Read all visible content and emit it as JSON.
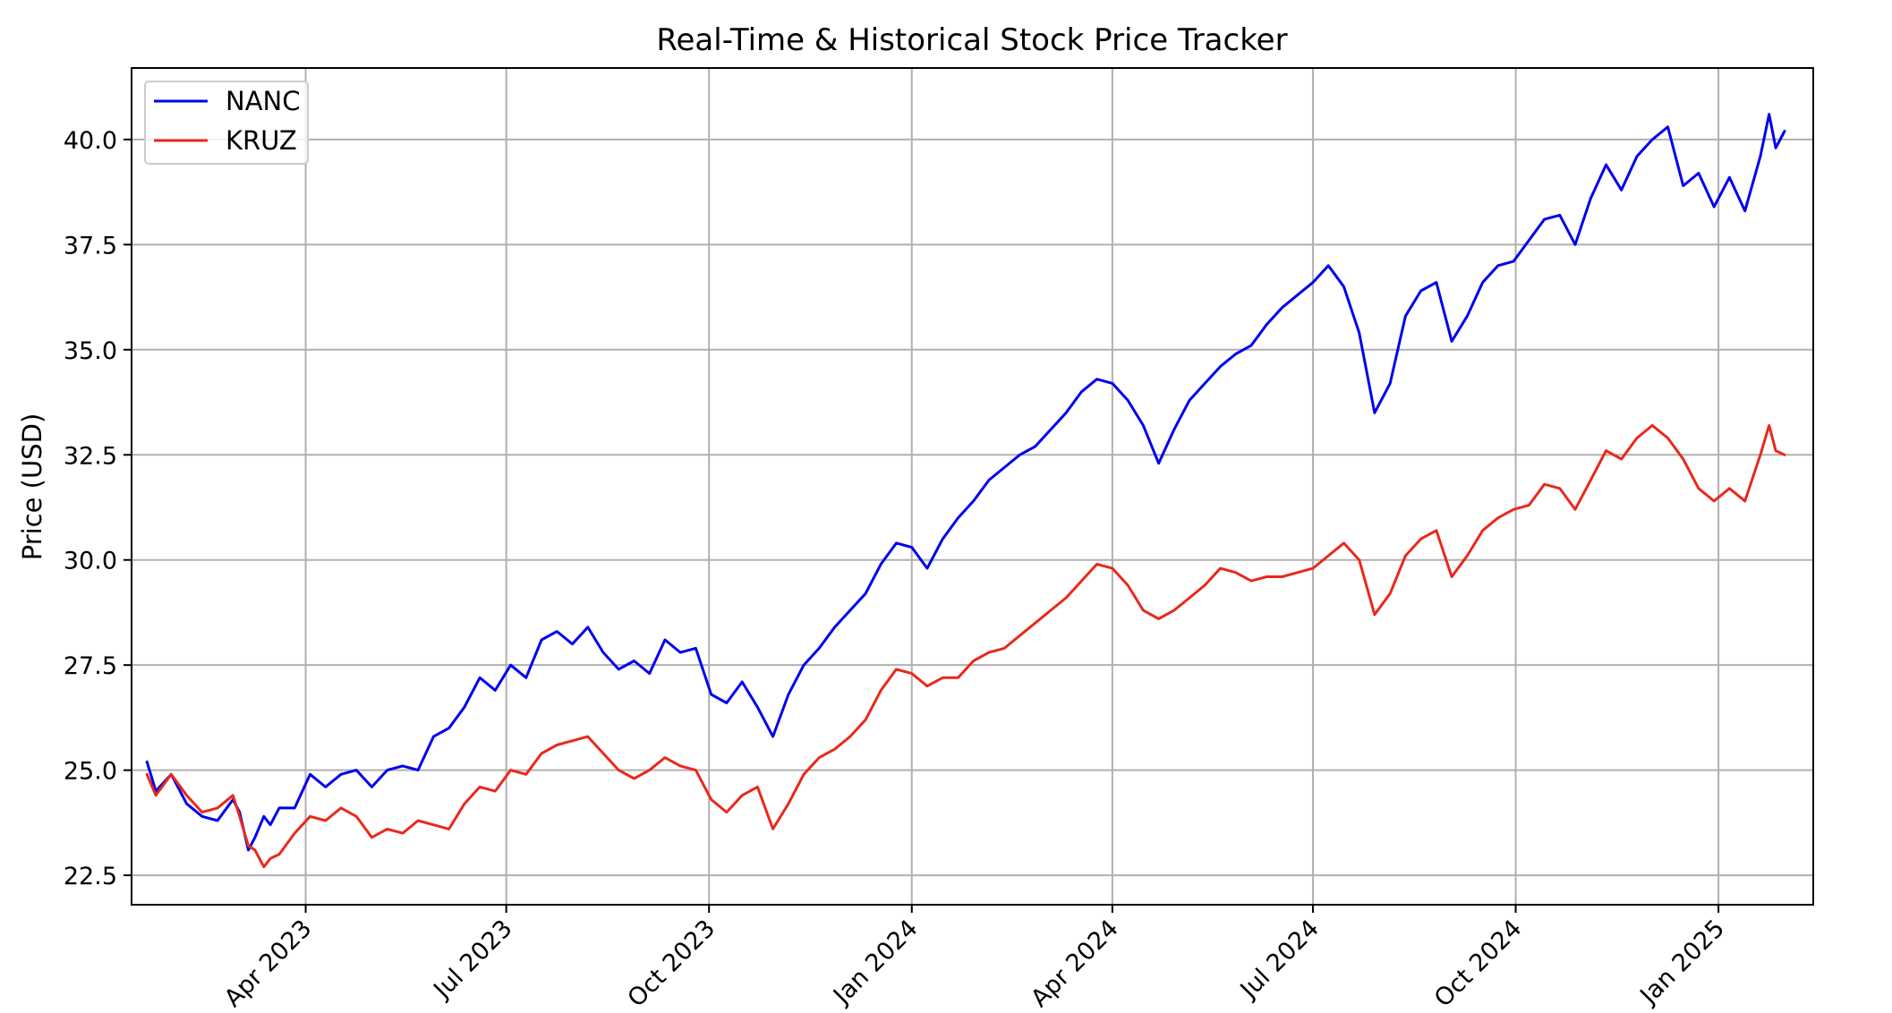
{
  "chart_data": {
    "type": "line",
    "title": "Real-Time & Historical Stock Price Tracker",
    "xlabel": "",
    "ylabel": "Price (USD)",
    "x_axis_type": "date",
    "xlim": [
      "2023-01-12",
      "2025-02-13"
    ],
    "ylim": [
      21.8,
      41.7
    ],
    "y_ticks": [
      22.5,
      25.0,
      27.5,
      30.0,
      32.5,
      35.0,
      37.5,
      40.0
    ],
    "y_tick_labels": [
      "22.5",
      "25.0",
      "27.5",
      "30.0",
      "32.5",
      "35.0",
      "37.5",
      "40.0"
    ],
    "x_ticks": [
      "2023-04-01",
      "2023-07-01",
      "2023-10-01",
      "2024-01-01",
      "2024-04-01",
      "2024-07-01",
      "2024-10-01",
      "2025-01-01"
    ],
    "x_tick_labels": [
      "Apr 2023",
      "Jul 2023",
      "Oct 2023",
      "Jan 2024",
      "Apr 2024",
      "Jul 2024",
      "Oct 2024",
      "Jan 2025"
    ],
    "grid": true,
    "legend_position": "top-left",
    "series": [
      {
        "name": "NANC",
        "color": "#0000ee",
        "points": [
          [
            "2023-01-19",
            25.2
          ],
          [
            "2023-01-23",
            24.5
          ],
          [
            "2023-01-30",
            24.9
          ],
          [
            "2023-02-06",
            24.2
          ],
          [
            "2023-02-13",
            23.9
          ],
          [
            "2023-02-20",
            23.8
          ],
          [
            "2023-02-27",
            24.3
          ],
          [
            "2023-03-02",
            24.0
          ],
          [
            "2023-03-06",
            23.1
          ],
          [
            "2023-03-09",
            23.4
          ],
          [
            "2023-03-13",
            23.9
          ],
          [
            "2023-03-16",
            23.7
          ],
          [
            "2023-03-20",
            24.1
          ],
          [
            "2023-03-27",
            24.1
          ],
          [
            "2023-04-03",
            24.9
          ],
          [
            "2023-04-10",
            24.6
          ],
          [
            "2023-04-17",
            24.9
          ],
          [
            "2023-04-24",
            25.0
          ],
          [
            "2023-05-01",
            24.6
          ],
          [
            "2023-05-08",
            25.0
          ],
          [
            "2023-05-15",
            25.1
          ],
          [
            "2023-05-22",
            25.0
          ],
          [
            "2023-05-29",
            25.8
          ],
          [
            "2023-06-05",
            26.0
          ],
          [
            "2023-06-12",
            26.5
          ],
          [
            "2023-06-19",
            27.2
          ],
          [
            "2023-06-26",
            26.9
          ],
          [
            "2023-07-03",
            27.5
          ],
          [
            "2023-07-10",
            27.2
          ],
          [
            "2023-07-17",
            28.1
          ],
          [
            "2023-07-24",
            28.3
          ],
          [
            "2023-07-31",
            28.0
          ],
          [
            "2023-08-07",
            28.4
          ],
          [
            "2023-08-14",
            27.8
          ],
          [
            "2023-08-21",
            27.4
          ],
          [
            "2023-08-28",
            27.6
          ],
          [
            "2023-09-04",
            27.3
          ],
          [
            "2023-09-11",
            28.1
          ],
          [
            "2023-09-18",
            27.8
          ],
          [
            "2023-09-25",
            27.9
          ],
          [
            "2023-10-02",
            26.8
          ],
          [
            "2023-10-09",
            26.6
          ],
          [
            "2023-10-16",
            27.1
          ],
          [
            "2023-10-23",
            26.5
          ],
          [
            "2023-10-30",
            25.8
          ],
          [
            "2023-11-06",
            26.8
          ],
          [
            "2023-11-13",
            27.5
          ],
          [
            "2023-11-20",
            27.9
          ],
          [
            "2023-11-27",
            28.4
          ],
          [
            "2023-12-04",
            28.8
          ],
          [
            "2023-12-11",
            29.2
          ],
          [
            "2023-12-18",
            29.9
          ],
          [
            "2023-12-25",
            30.4
          ],
          [
            "2024-01-01",
            30.3
          ],
          [
            "2024-01-08",
            29.8
          ],
          [
            "2024-01-15",
            30.5
          ],
          [
            "2024-01-22",
            31.0
          ],
          [
            "2024-01-29",
            31.4
          ],
          [
            "2024-02-05",
            31.9
          ],
          [
            "2024-02-12",
            32.2
          ],
          [
            "2024-02-19",
            32.5
          ],
          [
            "2024-02-26",
            32.7
          ],
          [
            "2024-03-04",
            33.1
          ],
          [
            "2024-03-11",
            33.5
          ],
          [
            "2024-03-18",
            34.0
          ],
          [
            "2024-03-25",
            34.3
          ],
          [
            "2024-04-01",
            34.2
          ],
          [
            "2024-04-08",
            33.8
          ],
          [
            "2024-04-15",
            33.2
          ],
          [
            "2024-04-22",
            32.3
          ],
          [
            "2024-04-29",
            33.1
          ],
          [
            "2024-05-06",
            33.8
          ],
          [
            "2024-05-13",
            34.2
          ],
          [
            "2024-05-20",
            34.6
          ],
          [
            "2024-05-27",
            34.9
          ],
          [
            "2024-06-03",
            35.1
          ],
          [
            "2024-06-10",
            35.6
          ],
          [
            "2024-06-17",
            36.0
          ],
          [
            "2024-06-24",
            36.3
          ],
          [
            "2024-07-01",
            36.6
          ],
          [
            "2024-07-08",
            37.0
          ],
          [
            "2024-07-15",
            36.5
          ],
          [
            "2024-07-22",
            35.4
          ],
          [
            "2024-07-29",
            33.5
          ],
          [
            "2024-08-05",
            34.2
          ],
          [
            "2024-08-12",
            35.8
          ],
          [
            "2024-08-19",
            36.4
          ],
          [
            "2024-08-26",
            36.6
          ],
          [
            "2024-09-02",
            35.2
          ],
          [
            "2024-09-09",
            35.8
          ],
          [
            "2024-09-16",
            36.6
          ],
          [
            "2024-09-23",
            37.0
          ],
          [
            "2024-09-30",
            37.1
          ],
          [
            "2024-10-07",
            37.6
          ],
          [
            "2024-10-14",
            38.1
          ],
          [
            "2024-10-21",
            38.2
          ],
          [
            "2024-10-28",
            37.5
          ],
          [
            "2024-11-04",
            38.6
          ],
          [
            "2024-11-11",
            39.4
          ],
          [
            "2024-11-18",
            38.8
          ],
          [
            "2024-11-25",
            39.6
          ],
          [
            "2024-12-02",
            40.0
          ],
          [
            "2024-12-09",
            40.3
          ],
          [
            "2024-12-16",
            38.9
          ],
          [
            "2024-12-23",
            39.2
          ],
          [
            "2024-12-30",
            38.4
          ],
          [
            "2025-01-06",
            39.1
          ],
          [
            "2025-01-13",
            38.3
          ],
          [
            "2025-01-20",
            39.6
          ],
          [
            "2025-01-24",
            40.6
          ],
          [
            "2025-01-27",
            39.8
          ],
          [
            "2025-01-31",
            40.2
          ]
        ]
      },
      {
        "name": "KRUZ",
        "color": "#e8291c",
        "points": [
          [
            "2023-01-19",
            24.9
          ],
          [
            "2023-01-23",
            24.4
          ],
          [
            "2023-01-30",
            24.9
          ],
          [
            "2023-02-06",
            24.4
          ],
          [
            "2023-02-13",
            24.0
          ],
          [
            "2023-02-20",
            24.1
          ],
          [
            "2023-02-27",
            24.4
          ],
          [
            "2023-03-02",
            23.9
          ],
          [
            "2023-03-06",
            23.2
          ],
          [
            "2023-03-09",
            23.1
          ],
          [
            "2023-03-13",
            22.7
          ],
          [
            "2023-03-16",
            22.9
          ],
          [
            "2023-03-20",
            23.0
          ],
          [
            "2023-03-27",
            23.5
          ],
          [
            "2023-04-03",
            23.9
          ],
          [
            "2023-04-10",
            23.8
          ],
          [
            "2023-04-17",
            24.1
          ],
          [
            "2023-04-24",
            23.9
          ],
          [
            "2023-05-01",
            23.4
          ],
          [
            "2023-05-08",
            23.6
          ],
          [
            "2023-05-15",
            23.5
          ],
          [
            "2023-05-22",
            23.8
          ],
          [
            "2023-05-29",
            23.7
          ],
          [
            "2023-06-05",
            23.6
          ],
          [
            "2023-06-12",
            24.2
          ],
          [
            "2023-06-19",
            24.6
          ],
          [
            "2023-06-26",
            24.5
          ],
          [
            "2023-07-03",
            25.0
          ],
          [
            "2023-07-10",
            24.9
          ],
          [
            "2023-07-17",
            25.4
          ],
          [
            "2023-07-24",
            25.6
          ],
          [
            "2023-07-31",
            25.7
          ],
          [
            "2023-08-07",
            25.8
          ],
          [
            "2023-08-14",
            25.4
          ],
          [
            "2023-08-21",
            25.0
          ],
          [
            "2023-08-28",
            24.8
          ],
          [
            "2023-09-04",
            25.0
          ],
          [
            "2023-09-11",
            25.3
          ],
          [
            "2023-09-18",
            25.1
          ],
          [
            "2023-09-25",
            25.0
          ],
          [
            "2023-10-02",
            24.3
          ],
          [
            "2023-10-09",
            24.0
          ],
          [
            "2023-10-16",
            24.4
          ],
          [
            "2023-10-23",
            24.6
          ],
          [
            "2023-10-30",
            23.6
          ],
          [
            "2023-11-06",
            24.2
          ],
          [
            "2023-11-13",
            24.9
          ],
          [
            "2023-11-20",
            25.3
          ],
          [
            "2023-11-27",
            25.5
          ],
          [
            "2023-12-04",
            25.8
          ],
          [
            "2023-12-11",
            26.2
          ],
          [
            "2023-12-18",
            26.9
          ],
          [
            "2023-12-25",
            27.4
          ],
          [
            "2024-01-01",
            27.3
          ],
          [
            "2024-01-08",
            27.0
          ],
          [
            "2024-01-15",
            27.2
          ],
          [
            "2024-01-22",
            27.2
          ],
          [
            "2024-01-29",
            27.6
          ],
          [
            "2024-02-05",
            27.8
          ],
          [
            "2024-02-12",
            27.9
          ],
          [
            "2024-02-19",
            28.2
          ],
          [
            "2024-02-26",
            28.5
          ],
          [
            "2024-03-04",
            28.8
          ],
          [
            "2024-03-11",
            29.1
          ],
          [
            "2024-03-18",
            29.5
          ],
          [
            "2024-03-25",
            29.9
          ],
          [
            "2024-04-01",
            29.8
          ],
          [
            "2024-04-08",
            29.4
          ],
          [
            "2024-04-15",
            28.8
          ],
          [
            "2024-04-22",
            28.6
          ],
          [
            "2024-04-29",
            28.8
          ],
          [
            "2024-05-06",
            29.1
          ],
          [
            "2024-05-13",
            29.4
          ],
          [
            "2024-05-20",
            29.8
          ],
          [
            "2024-05-27",
            29.7
          ],
          [
            "2024-06-03",
            29.5
          ],
          [
            "2024-06-10",
            29.6
          ],
          [
            "2024-06-17",
            29.6
          ],
          [
            "2024-06-24",
            29.7
          ],
          [
            "2024-07-01",
            29.8
          ],
          [
            "2024-07-08",
            30.1
          ],
          [
            "2024-07-15",
            30.4
          ],
          [
            "2024-07-22",
            30.0
          ],
          [
            "2024-07-29",
            28.7
          ],
          [
            "2024-08-05",
            29.2
          ],
          [
            "2024-08-12",
            30.1
          ],
          [
            "2024-08-19",
            30.5
          ],
          [
            "2024-08-26",
            30.7
          ],
          [
            "2024-09-02",
            29.6
          ],
          [
            "2024-09-09",
            30.1
          ],
          [
            "2024-09-16",
            30.7
          ],
          [
            "2024-09-23",
            31.0
          ],
          [
            "2024-09-30",
            31.2
          ],
          [
            "2024-10-07",
            31.3
          ],
          [
            "2024-10-14",
            31.8
          ],
          [
            "2024-10-21",
            31.7
          ],
          [
            "2024-10-28",
            31.2
          ],
          [
            "2024-11-04",
            31.9
          ],
          [
            "2024-11-11",
            32.6
          ],
          [
            "2024-11-18",
            32.4
          ],
          [
            "2024-11-25",
            32.9
          ],
          [
            "2024-12-02",
            33.2
          ],
          [
            "2024-12-09",
            32.9
          ],
          [
            "2024-12-16",
            32.4
          ],
          [
            "2024-12-23",
            31.7
          ],
          [
            "2024-12-30",
            31.4
          ],
          [
            "2025-01-06",
            31.7
          ],
          [
            "2025-01-13",
            31.4
          ],
          [
            "2025-01-20",
            32.5
          ],
          [
            "2025-01-24",
            33.2
          ],
          [
            "2025-01-27",
            32.6
          ],
          [
            "2025-01-31",
            32.5
          ]
        ]
      }
    ]
  }
}
